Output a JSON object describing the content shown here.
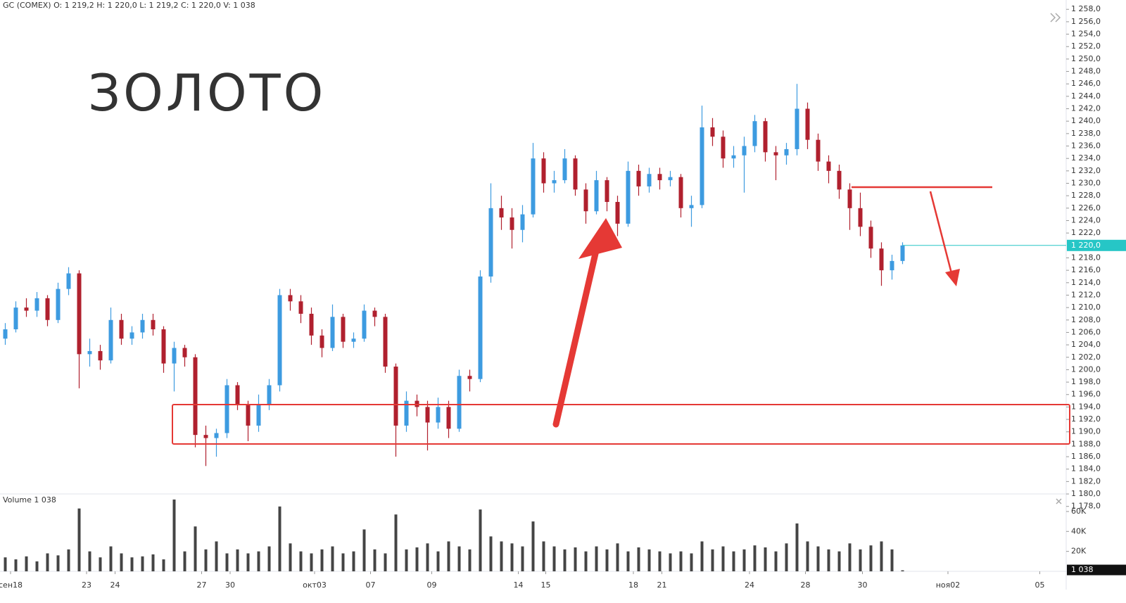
{
  "chart_data": {
    "type": "candlestick",
    "title": "GC (COMEX) O: 1 219,2 H: 1 220,0 L: 1 219,2 C: 1 220,0 V: 1 038",
    "annotation": "ЗОЛОТО",
    "up_color": "#3d9be0",
    "down_color": "#b0202e",
    "x": [
      0,
      1,
      2,
      3,
      4,
      5,
      6,
      7,
      8,
      9,
      10,
      11,
      12,
      13,
      14,
      15,
      16,
      17,
      18,
      19,
      20,
      21,
      22,
      23,
      24,
      25,
      26,
      27,
      28,
      29,
      30,
      31,
      32,
      33,
      34,
      35,
      36,
      37,
      38,
      39,
      40,
      41,
      42,
      43,
      44,
      45,
      46,
      47,
      48,
      49,
      50,
      51,
      52,
      53,
      54,
      55,
      56,
      57,
      58,
      59,
      60,
      61,
      62,
      63,
      64,
      65,
      66,
      67,
      68,
      69,
      70,
      71,
      72,
      73,
      74,
      75,
      76,
      77,
      78,
      79,
      80,
      81,
      82,
      83,
      84,
      85
    ],
    "open": [
      1205,
      1206.5,
      1210,
      1209.5,
      1211.5,
      1208,
      1213,
      1215.5,
      1202.5,
      1203,
      1201.5,
      1208,
      1205,
      1206,
      1208,
      1206.5,
      1201,
      1203.5,
      1202,
      1189.5,
      1189,
      1189.8,
      1197.5,
      1194.5,
      1191,
      1194.5,
      1197.5,
      1212,
      1211,
      1209,
      1205.5,
      1203.5,
      1208.5,
      1204.5,
      1205,
      1209.5,
      1208.5,
      1200.5,
      1191,
      1195,
      1194,
      1191.5,
      1194,
      1190.5,
      1199,
      1198.5,
      1215,
      1226,
      1224.5,
      1222.5,
      1225,
      1234,
      1230,
      1230.5,
      1234,
      1229,
      1225.5,
      1230.5,
      1227,
      1223.5,
      1232,
      1229.5,
      1231.5,
      1230.5,
      1231,
      1226,
      1226.5,
      1239,
      1237.5,
      1234,
      1234.5,
      1236,
      1240,
      1235,
      1234.5,
      1235.5,
      1242,
      1237,
      1233.5,
      1232,
      1229,
      1226,
      1223,
      1219.5,
      1216,
      1217.5
    ],
    "high": [
      1207.5,
      1211,
      1211.5,
      1212.5,
      1212,
      1214,
      1216.5,
      1216,
      1205,
      1204,
      1210,
      1209,
      1207,
      1209,
      1209,
      1207,
      1204.5,
      1204,
      1202.5,
      1191,
      1190.5,
      1198.5,
      1198,
      1195,
      1196,
      1198.5,
      1213,
      1213,
      1212,
      1210,
      1206.5,
      1210.5,
      1209,
      1206,
      1210.5,
      1210,
      1209,
      1201,
      1196.5,
      1196,
      1195,
      1195.5,
      1195,
      1200,
      1200,
      1216,
      1230,
      1228,
      1226,
      1226.5,
      1236.5,
      1235,
      1232,
      1235.5,
      1234.5,
      1230,
      1232,
      1231,
      1228,
      1233.5,
      1233,
      1232.5,
      1232.5,
      1232,
      1231.5,
      1228,
      1242.5,
      1240.5,
      1238.5,
      1236,
      1237.5,
      1241,
      1240.5,
      1236,
      1236.5,
      1246,
      1243,
      1238,
      1234.5,
      1233,
      1230,
      1228.5,
      1224,
      1220.5,
      1218.5,
      1220.5
    ],
    "low": [
      1204,
      1206,
      1208.5,
      1208.5,
      1207,
      1207.5,
      1212,
      1197,
      1200.5,
      1200,
      1201,
      1204,
      1204,
      1205,
      1205.5,
      1199.5,
      1196.5,
      1200.5,
      1187.5,
      1184.5,
      1186,
      1189,
      1193.5,
      1188.5,
      1190,
      1193.5,
      1196.5,
      1209.5,
      1207.5,
      1204,
      1202,
      1203,
      1203.5,
      1203.5,
      1204.5,
      1207,
      1199.5,
      1186,
      1190,
      1192.5,
      1187,
      1190.5,
      1189,
      1190,
      1196.5,
      1198,
      1214,
      1222.5,
      1219.5,
      1220.5,
      1224.5,
      1228.5,
      1228.5,
      1230,
      1228,
      1223.5,
      1225,
      1225.5,
      1221.5,
      1223,
      1228,
      1228.5,
      1229,
      1229.5,
      1224.5,
      1223,
      1226,
      1236,
      1232.5,
      1232.5,
      1228.5,
      1235,
      1233.5,
      1230.5,
      1233,
      1234.5,
      1235.5,
      1232,
      1230,
      1227.5,
      1222.5,
      1221.5,
      1218,
      1213.5,
      1214.5,
      1217
    ],
    "close": [
      1206.5,
      1210,
      1209.5,
      1211.5,
      1208,
      1213,
      1215.5,
      1202.5,
      1203,
      1201.5,
      1208,
      1205,
      1206,
      1208,
      1206.5,
      1201,
      1203.5,
      1202,
      1189.5,
      1189,
      1189.8,
      1197.5,
      1194.5,
      1191,
      1194.5,
      1197.5,
      1212,
      1211,
      1209,
      1205.5,
      1203.5,
      1208.5,
      1204.5,
      1205,
      1209.5,
      1208.5,
      1200.5,
      1191,
      1195,
      1194,
      1191.5,
      1194,
      1190.5,
      1199,
      1198.5,
      1215,
      1226,
      1224.5,
      1222.5,
      1225,
      1234,
      1230,
      1230.5,
      1234,
      1229,
      1225.5,
      1230.5,
      1227,
      1223.5,
      1232,
      1229.5,
      1231.5,
      1230.5,
      1231,
      1226,
      1226.5,
      1239,
      1237.5,
      1234,
      1234.5,
      1236,
      1240,
      1235,
      1234.5,
      1235.5,
      1242,
      1237,
      1233.5,
      1232,
      1229,
      1226,
      1223,
      1219.5,
      1216,
      1217.5,
      1220
    ],
    "xlim": [
      -0.5,
      100.5
    ],
    "xticks": [
      {
        "value": 0.5,
        "label": "сен18"
      },
      {
        "value": 7.7,
        "label": "23"
      },
      {
        "value": 10.4,
        "label": "24"
      },
      {
        "value": 18.6,
        "label": "27"
      },
      {
        "value": 21.3,
        "label": "30"
      },
      {
        "value": 29.3,
        "label": "окт03"
      },
      {
        "value": 34.6,
        "label": "07"
      },
      {
        "value": 40.4,
        "label": "09"
      },
      {
        "value": 48.6,
        "label": "14"
      },
      {
        "value": 51.2,
        "label": "15"
      },
      {
        "value": 59.5,
        "label": "18"
      },
      {
        "value": 62.2,
        "label": "21"
      },
      {
        "value": 70.5,
        "label": "24"
      },
      {
        "value": 75.8,
        "label": "28"
      },
      {
        "value": 81.2,
        "label": "30"
      },
      {
        "value": 89.3,
        "label": "ноя02"
      },
      {
        "value": 98,
        "label": "05"
      }
    ],
    "ylim": [
      1177.4,
      1259.5
    ],
    "yticks": [
      {
        "value": 1178,
        "label": "1 178,0"
      },
      {
        "value": 1180,
        "label": "1 180,0"
      },
      {
        "value": 1182,
        "label": "1 182,0"
      },
      {
        "value": 1184,
        "label": "1 184,0"
      },
      {
        "value": 1186,
        "label": "1 186,0"
      },
      {
        "value": 1188,
        "label": "1 188,0"
      },
      {
        "value": 1190,
        "label": "1 190,0"
      },
      {
        "value": 1192,
        "label": "1 192,0"
      },
      {
        "value": 1194,
        "label": "1 194,0"
      },
      {
        "value": 1196,
        "label": "1 196,0"
      },
      {
        "value": 1198,
        "label": "1 198,0"
      },
      {
        "value": 1200,
        "label": "1 200,0"
      },
      {
        "value": 1202,
        "label": "1 202,0"
      },
      {
        "value": 1204,
        "label": "1 204,0"
      },
      {
        "value": 1206,
        "label": "1 206,0"
      },
      {
        "value": 1208,
        "label": "1 208,0"
      },
      {
        "value": 1210,
        "label": "1 210,0"
      },
      {
        "value": 1212,
        "label": "1 212,0"
      },
      {
        "value": 1214,
        "label": "1 214,0"
      },
      {
        "value": 1216,
        "label": "1 216,0"
      },
      {
        "value": 1218,
        "label": "1 218,0"
      },
      {
        "value": 1222,
        "label": "1 222,0"
      },
      {
        "value": 1224,
        "label": "1 224,0"
      },
      {
        "value": 1226,
        "label": "1 226,0"
      },
      {
        "value": 1228,
        "label": "1 228,0"
      },
      {
        "value": 1230,
        "label": "1 230,0"
      },
      {
        "value": 1232,
        "label": "1 232,0"
      },
      {
        "value": 1234,
        "label": "1 234,0"
      },
      {
        "value": 1236,
        "label": "1 236,0"
      },
      {
        "value": 1238,
        "label": "1 238,0"
      },
      {
        "value": 1240,
        "label": "1 240,0"
      },
      {
        "value": 1242,
        "label": "1 242,0"
      },
      {
        "value": 1244,
        "label": "1 244,0"
      },
      {
        "value": 1246,
        "label": "1 246,0"
      },
      {
        "value": 1248,
        "label": "1 248,0"
      },
      {
        "value": 1250,
        "label": "1 250,0"
      },
      {
        "value": 1252,
        "label": "1 252,0"
      },
      {
        "value": 1254,
        "label": "1 254,0"
      },
      {
        "value": 1256,
        "label": "1 256,0"
      },
      {
        "value": 1258,
        "label": "1 258,0"
      }
    ],
    "last_price_label": "1 220,0",
    "last_price_color": "#26c6c6",
    "volume": {
      "title": "Volume 1 038",
      "color": "#444444",
      "values": [
        14000,
        12000,
        15000,
        10000,
        18000,
        16000,
        22000,
        63000,
        20000,
        14000,
        25000,
        18000,
        14000,
        15000,
        17000,
        12000,
        72000,
        20000,
        45000,
        22000,
        30000,
        18000,
        22000,
        18000,
        20000,
        25000,
        65000,
        28000,
        20000,
        18000,
        22000,
        25000,
        18000,
        20000,
        42000,
        22000,
        18000,
        57000,
        22000,
        24000,
        28000,
        20000,
        30000,
        25000,
        22000,
        62000,
        35000,
        30000,
        28000,
        25000,
        50000,
        30000,
        25000,
        22000,
        24000,
        20000,
        25000,
        22000,
        28000,
        20000,
        24000,
        22000,
        20000,
        18000,
        20000,
        18000,
        30000,
        22000,
        25000,
        20000,
        22000,
        26000,
        24000,
        20000,
        28000,
        48000,
        30000,
        25000,
        22000,
        20000,
        28000,
        22000,
        26000,
        30000,
        22000,
        1038
      ],
      "ylim": [
        0,
        79000
      ],
      "yticks": [
        {
          "value": 20000,
          "label": "20K"
        },
        {
          "value": 40000,
          "label": "40K"
        },
        {
          "value": 60000,
          "label": "60K"
        }
      ],
      "last_label": "1 038"
    }
  }
}
